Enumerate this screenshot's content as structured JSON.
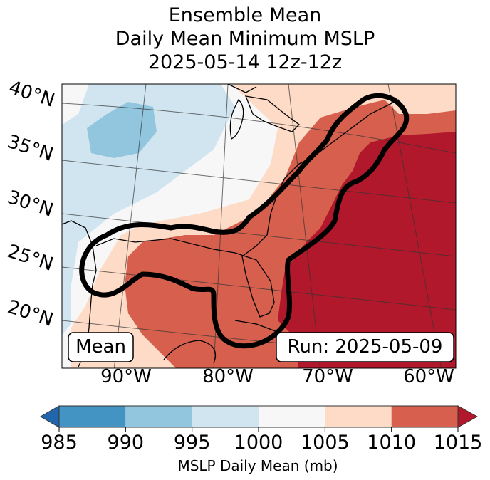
{
  "title": {
    "line1": "Ensemble Mean",
    "line2": "Daily Mean Minimum MSLP",
    "line3": "2025-05-14 12z-12z"
  },
  "map": {
    "lat_labels": [
      "40°N",
      "35°N",
      "30°N",
      "25°N",
      "20°N"
    ],
    "lon_labels": [
      "90°W",
      "80°W",
      "70°W",
      "60°W"
    ],
    "mean_box_label": "Mean",
    "run_box_label": "Run: 2025-05-09",
    "contour": "black outline of ensemble probability region along the Gulf Coast, Florida and U.S. East Coast",
    "regions": [
      {
        "bin": "990-995",
        "color": "#92c5de",
        "description": "low over central U.S."
      },
      {
        "bin": "995-1000",
        "color": "#d1e5f0",
        "description": "west / central U.S."
      },
      {
        "bin": "1000-1005",
        "color": "#f7f7f7",
        "description": "band across mid-U.S."
      },
      {
        "bin": "1005-1010",
        "color": "#fddbc7",
        "description": "Great Lakes, Mississippi valley"
      },
      {
        "bin": "1010-1015",
        "color": "#d6604d",
        "description": "Gulf of Mexico, Southeast, East Coast"
      },
      {
        "bin": ">1015",
        "color": "#b2182b",
        "description": "western Atlantic"
      }
    ]
  },
  "colorbar": {
    "label": "MSLP Daily Mean (mb)",
    "ticks": [
      "985",
      "990",
      "995",
      "1000",
      "1005",
      "1010",
      "1015"
    ],
    "under_color": "#2166ac",
    "over_color": "#b2182b",
    "bins": [
      {
        "from": 985,
        "to": 990,
        "color": "#4393c3"
      },
      {
        "from": 990,
        "to": 995,
        "color": "#92c5de"
      },
      {
        "from": 995,
        "to": 1000,
        "color": "#d1e5f0"
      },
      {
        "from": 1000,
        "to": 1005,
        "color": "#f7f7f7"
      },
      {
        "from": 1005,
        "to": 1010,
        "color": "#fddbc7"
      },
      {
        "from": 1010,
        "to": 1015,
        "color": "#d6604d"
      }
    ]
  }
}
